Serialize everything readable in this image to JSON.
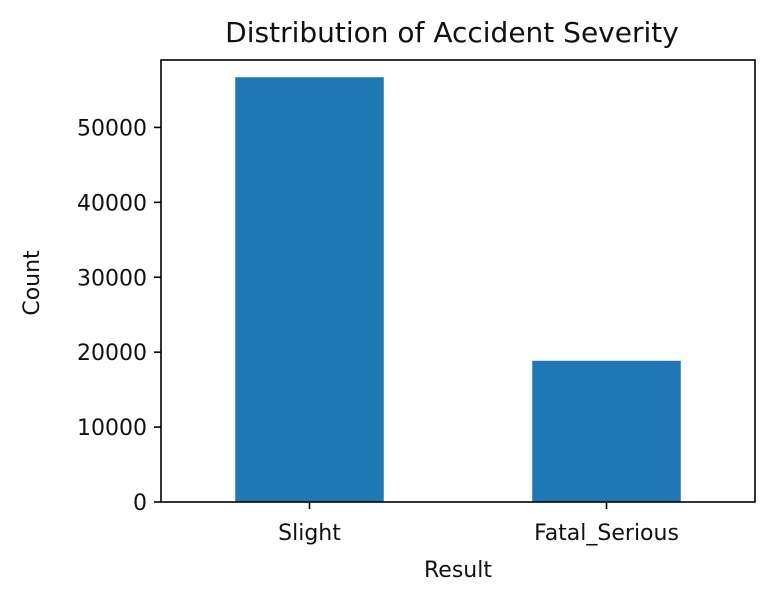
{
  "chart_data": {
    "type": "bar",
    "title": "Distribution of Accident Severity",
    "xlabel": "Result",
    "ylabel": "Count",
    "categories": [
      "Slight",
      "Fatal_Serious"
    ],
    "values": [
      56700,
      18850
    ],
    "ylim": [
      0,
      59000
    ],
    "yticks": [
      0,
      10000,
      20000,
      30000,
      40000,
      50000
    ],
    "grid": false,
    "legend": "none",
    "colors": {
      "bar": "#1f77b4",
      "axis": "#000000",
      "text": "#111111"
    }
  }
}
